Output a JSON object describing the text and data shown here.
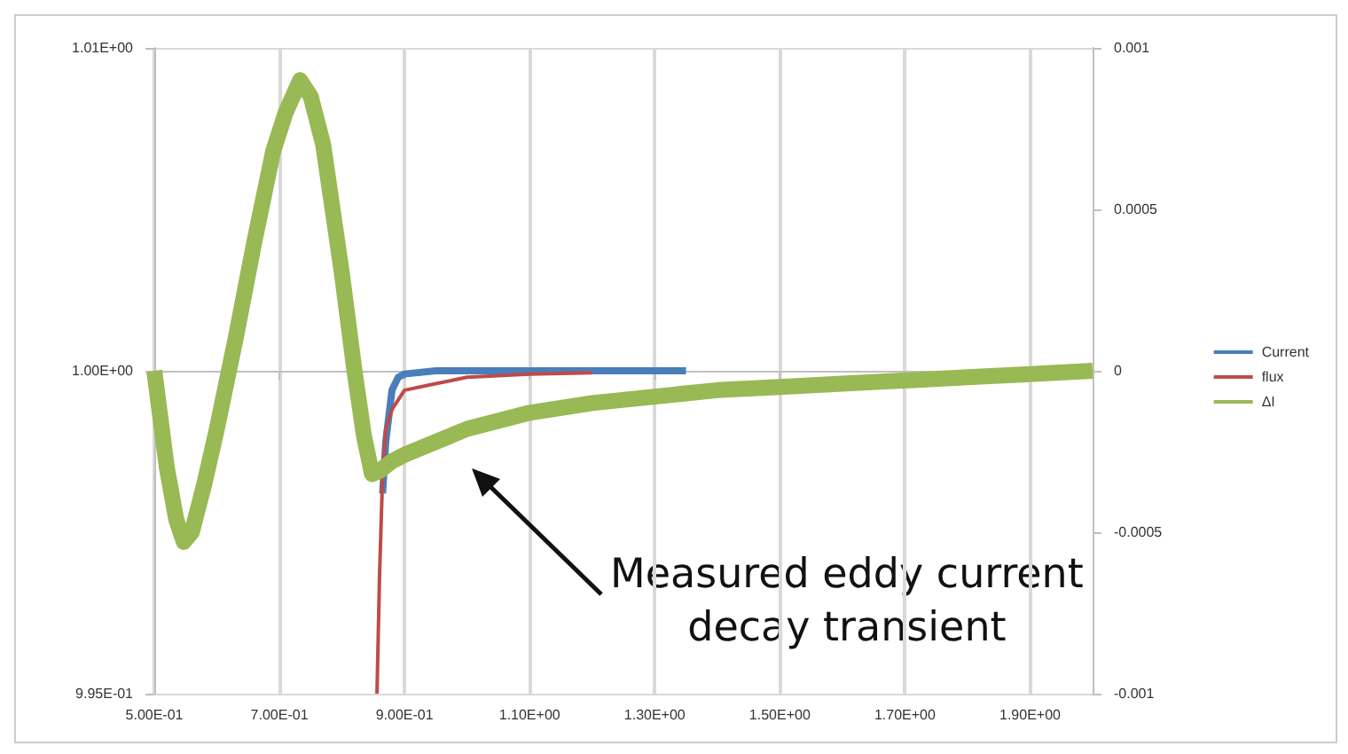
{
  "chart_data": {
    "type": "line",
    "annotations": [
      "Measured eddy current\ndecay transient"
    ],
    "xlim": [
      0.5,
      2.0
    ],
    "xticks": [
      {
        "value": 0.5,
        "label": "5.00E-01"
      },
      {
        "value": 0.7,
        "label": "7.00E-01"
      },
      {
        "value": 0.9,
        "label": "9.00E-01"
      },
      {
        "value": 1.1,
        "label": "1.10E+00"
      },
      {
        "value": 1.3,
        "label": "1.30E+00"
      },
      {
        "value": 1.5,
        "label": "1.50E+00"
      },
      {
        "value": 1.7,
        "label": "1.70E+00"
      },
      {
        "value": 1.9,
        "label": "1.90E+00"
      }
    ],
    "ylim": [
      0.995,
      1.005
    ],
    "yticks": [
      {
        "value": 0.995,
        "label": "9.95E-01"
      },
      {
        "value": 1.0,
        "label": "1.00E+00"
      },
      {
        "value": 1.005,
        "label": "1.01E+00"
      }
    ],
    "y2lim": [
      -0.001,
      0.001
    ],
    "y2ticks": [
      -0.001,
      -0.0005,
      0,
      0.0005,
      0.001
    ],
    "grid": true,
    "legend": "right",
    "marker": "none",
    "line_style": "solid",
    "series": [
      {
        "name": "Current",
        "color": "#4a7ebb",
        "x": [
          0.865,
          0.87,
          0.88,
          0.89,
          0.9,
          0.95,
          1.05,
          1.15,
          1.25,
          1.35
        ],
        "values": [
          0.9981,
          0.9989,
          0.9997,
          0.9999,
          0.99995,
          1.0,
          1.0,
          1.0,
          1.0,
          1.0
        ]
      },
      {
        "name": "flux",
        "color": "#be4b48",
        "x": [
          0.856,
          0.86,
          0.865,
          0.87,
          0.88,
          0.9,
          0.95,
          1.0,
          1.1,
          1.2
        ],
        "values": [
          0.995,
          0.9968,
          0.9984,
          0.9991,
          0.9994,
          0.9997,
          0.9998,
          0.9999,
          0.99995,
          0.99997
        ]
      },
      {
        "name": "ΔI",
        "color": "#98b954",
        "axis": "y2",
        "x": [
          0.5,
          0.52,
          0.535,
          0.547,
          0.56,
          0.58,
          0.6,
          0.63,
          0.66,
          0.69,
          0.71,
          0.733,
          0.75,
          0.77,
          0.8,
          0.82,
          0.835,
          0.848,
          0.86,
          0.88,
          0.9,
          0.95,
          1.0,
          1.1,
          1.2,
          1.3,
          1.4,
          1.5,
          1.6,
          1.7,
          1.8,
          1.9,
          2.0
        ],
        "values": [
          0,
          -0.0003,
          -0.00046,
          -0.00053,
          -0.0005,
          -0.00035,
          -0.00018,
          0.0001,
          0.0004,
          0.00068,
          0.0008,
          0.0009,
          0.00085,
          0.0007,
          0.0003,
          0.0,
          -0.0002,
          -0.00032,
          -0.00031,
          -0.00028,
          -0.00026,
          -0.00022,
          -0.00018,
          -0.00013,
          -0.0001,
          -8e-05,
          -6e-05,
          -5e-05,
          -4e-05,
          -3e-05,
          -2e-05,
          -1e-05,
          0
        ]
      }
    ]
  }
}
